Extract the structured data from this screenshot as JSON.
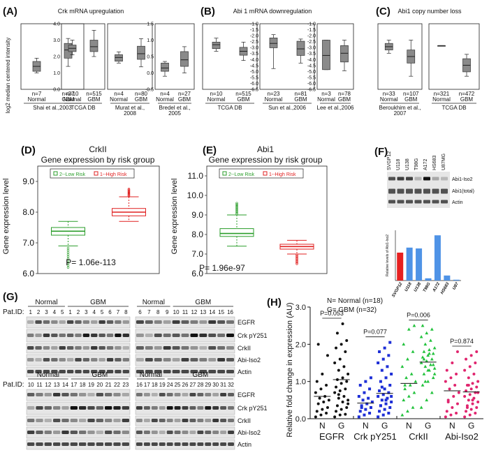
{
  "panels": {
    "A": {
      "label": "(A)",
      "title": "Crk mRNA upregulation",
      "ylabel": "log2 median centered intensity"
    },
    "B": {
      "label": "(B)",
      "title": "Abi 1 mRNA downregulation"
    },
    "C": {
      "label": "(C)",
      "title": "Abi1 copy number loss"
    },
    "D": {
      "label": "(D)",
      "gene": "CrkII",
      "title": "Gene expression by risk group",
      "ylabel": "Gene expression level",
      "pvalue": "P= 1.06e-113"
    },
    "E": {
      "label": "(E)",
      "gene": "Abi1",
      "title": "Gene expression by risk group",
      "ylabel": "Gene expression level",
      "pvalue": "P= 1.96e-97"
    },
    "F": {
      "label": "(F)",
      "ylabel": "Relative levels of Abi1-Iso2"
    },
    "G": {
      "label": "(G)",
      "patid": "Pat.ID:"
    },
    "H": {
      "label": "(H)",
      "legend_normal": "N= Normal (n=18)",
      "legend_gbm": "G= GBM (n=32)",
      "ylabel": "Relative fold change in expression (AU)"
    }
  },
  "chart_data": [
    {
      "panel": "A",
      "type": "box",
      "title": "Crk mRNA upregulation",
      "ylabel": "log2 median centered intensity",
      "subplots": [
        {
          "source": "Shai et al.,2003",
          "groups": [
            {
              "n": "n=7",
              "name": "Normal",
              "q1": 0.05,
              "med": 0.2,
              "q3": 0.35,
              "lo": 0.0,
              "hi": 0.45
            },
            {
              "n": "n=27",
              "name": "GBM",
              "q1": 0.45,
              "med": 0.7,
              "q3": 0.9,
              "lo": 0.2,
              "hi": 1.05
            }
          ],
          "ylim": [
            -0.5,
            1.5
          ],
          "ticks": []
        },
        {
          "source": "TCGA DB",
          "groups": [
            {
              "n": "n=10",
              "name": "Normal",
              "q1": 2.3,
              "med": 2.5,
              "q3": 2.7,
              "lo": 2.1,
              "hi": 3.0
            },
            {
              "n": "n=515",
              "name": "GBM",
              "q1": 2.3,
              "med": 2.6,
              "q3": 3.0,
              "lo": 2.0,
              "hi": 3.6
            }
          ],
          "ylim": [
            0.0,
            4.0
          ],
          "ticks": [
            "4.0",
            "3.0",
            "2.0",
            "1.0",
            "0.0"
          ]
        },
        {
          "source": "Murat et al., 2008",
          "groups": [
            {
              "n": "n=4",
              "name": "Normal",
              "q1": 1.0,
              "med": 1.2,
              "q3": 1.35,
              "lo": 0.9,
              "hi": 1.5
            },
            {
              "n": "n=80",
              "name": "GBM",
              "q1": 1.1,
              "med": 1.4,
              "q3": 1.8,
              "lo": 0.7,
              "hi": 2.2
            }
          ],
          "ylim": [
            -0.5,
            3.0
          ],
          "ticks": []
        },
        {
          "source": "Bredel et al., 2005",
          "groups": [
            {
              "n": "n=4",
              "name": "Normal",
              "q1": 0.05,
              "med": 0.15,
              "q3": 0.3,
              "lo": -0.1,
              "hi": 0.35
            },
            {
              "n": "n=27",
              "name": "GBM",
              "q1": 0.2,
              "med": 0.4,
              "q3": 0.65,
              "lo": 0.0,
              "hi": 0.8
            }
          ],
          "ylim": [
            -0.5,
            1.5
          ],
          "ticks": [
            "1.5",
            "1.0",
            "0.5",
            "0.0",
            "-0.5"
          ]
        }
      ]
    },
    {
      "panel": "B",
      "type": "box",
      "title": "Abi 1 mRNA downregulation",
      "subplots": [
        {
          "source": "TCGA DB",
          "groups": [
            {
              "n": "n=10",
              "name": "Normal",
              "q1": 3.1,
              "med": 3.4,
              "q3": 3.6,
              "lo": 2.9,
              "hi": 3.9
            },
            {
              "n": "n=515",
              "name": "GBM",
              "q1": 2.6,
              "med": 2.9,
              "q3": 3.2,
              "lo": 2.2,
              "hi": 3.6
            }
          ],
          "ylim": [
            0.0,
            5.0
          ],
          "ticks": []
        },
        {
          "source": "Sun et al.,2006",
          "groups": [
            {
              "n": "n=23",
              "name": "Normal",
              "q1": -2.7,
              "med": -2.3,
              "q3": -1.8,
              "lo": -4.6,
              "hi": -1.5
            },
            {
              "n": "n=81",
              "name": "GBM",
              "q1": -3.4,
              "med": -2.8,
              "q3": -2.1,
              "lo": -4.1,
              "hi": -1.9
            }
          ],
          "ylim": [
            -6.5,
            -0.5
          ],
          "ticks": [
            "-1.0",
            "-1.5",
            "-2.0",
            "-2.5",
            "-3.0",
            "-3.5",
            "-4.0",
            "-4.5",
            "-5.0",
            "-5.5",
            "-6.0",
            "-6.5"
          ]
        },
        {
          "source": "Lee et al.,2006",
          "groups": [
            {
              "n": "n=3",
              "name": "Normal",
              "q1": -4.7,
              "med": -3.4,
              "q3": -2.0,
              "lo": -4.7,
              "hi": -2.0
            },
            {
              "n": "n=78",
              "name": "GBM",
              "q1": -4.0,
              "med": -3.2,
              "q3": -2.5,
              "lo": -4.8,
              "hi": -2.0
            }
          ],
          "ylim": [
            -6.5,
            -0.5
          ],
          "ticks": [
            "-1.0",
            "-1.5",
            "-2.0",
            "-2.5",
            "-3.0",
            "-3.5",
            "-4.0",
            "-4.5",
            "-5.0",
            "-5.5",
            "-6.0",
            "-6.5"
          ]
        }
      ]
    },
    {
      "panel": "C",
      "type": "box",
      "title": "Abi1 copy number loss",
      "subplots": [
        {
          "source": "Beroukhim et al., 2007",
          "groups": [
            {
              "n": "n=33",
              "name": "Normal",
              "q1": 0.1,
              "med": 0.15,
              "q3": 0.2,
              "lo": 0.05,
              "hi": 0.25
            },
            {
              "n": "n=107",
              "name": "GBM",
              "q1": -0.1,
              "med": 0.0,
              "q3": 0.1,
              "lo": -0.3,
              "hi": 0.25
            }
          ],
          "ylim": [
            -0.5,
            0.5
          ],
          "ticks": []
        },
        {
          "source": "TCGA DB",
          "groups": [
            {
              "n": "n=321",
              "name": "Normal",
              "q1": 0.0,
              "med": 0.0,
              "q3": 0.0,
              "lo": 0.0,
              "hi": 0.0
            },
            {
              "n": "n=472",
              "name": "GBM",
              "q1": -0.6,
              "med": -0.45,
              "q3": -0.3,
              "lo": -0.7,
              "hi": -0.2
            }
          ],
          "ylim": [
            -1.0,
            0.5
          ],
          "ticks": []
        }
      ]
    },
    {
      "panel": "D",
      "type": "box",
      "gene": "CrkII",
      "title": "Gene expression by risk group",
      "ylabel": "Gene expression level",
      "legend": [
        "2--Low Risk",
        "1--High Risk"
      ],
      "ylim": [
        6.0,
        9.5
      ],
      "ticks": [
        "9.0",
        "8.0",
        "7.0",
        "6.0"
      ],
      "groups": [
        {
          "name": "2--Low Risk",
          "q1": 7.25,
          "med": 7.38,
          "q3": 7.5,
          "lo": 6.9,
          "hi": 7.7,
          "outlier_lo": 6.2,
          "color": "#2a9d2a"
        },
        {
          "name": "1--High Risk",
          "q1": 7.88,
          "med": 8.0,
          "q3": 8.12,
          "lo": 7.7,
          "hi": 8.5,
          "outlier_hi": 8.75,
          "color": "#e02020"
        }
      ],
      "pvalue": "P= 1.06e-113"
    },
    {
      "panel": "E",
      "type": "box",
      "gene": "Abi1",
      "title": "Gene expression by risk group",
      "ylabel": "Gene expression level",
      "legend": [
        "2--Low Risk",
        "1--High Risk"
      ],
      "ylim": [
        6.0,
        11.5
      ],
      "ticks": [
        "11.0",
        "10.0",
        "9.0",
        "8.0",
        "7.0",
        "6.0"
      ],
      "groups": [
        {
          "name": "2--Low Risk",
          "q1": 7.9,
          "med": 8.05,
          "q3": 8.3,
          "lo": 7.4,
          "hi": 9.0,
          "outlier_hi": 9.6,
          "color": "#2a9d2a"
        },
        {
          "name": "1--High Risk",
          "q1": 7.25,
          "med": 7.38,
          "q3": 7.5,
          "lo": 7.0,
          "hi": 7.7,
          "outlier_lo": 6.5,
          "color": "#e02020"
        }
      ],
      "pvalue": "P= 1.96e-97"
    },
    {
      "panel": "F",
      "type": "bar",
      "ylabel": "Relative levels of Abi1-Iso2",
      "categories": [
        "SVGP12",
        "U118",
        "U138",
        "T98G",
        "A172",
        "HS683",
        "U87"
      ],
      "values": [
        1.0,
        1.18,
        1.15,
        0.08,
        1.62,
        0.18,
        0.03
      ],
      "colors": [
        "#e62020",
        "#4f93e6",
        "#4f93e6",
        "#4f93e6",
        "#4f93e6",
        "#4f93e6",
        "#4f93e6"
      ],
      "blot_lanes": [
        "SVGP12",
        "U118",
        "U138",
        "T98G",
        "A172",
        "HS683",
        "U87MG"
      ],
      "blot_rows": [
        "Abi1-Iso2",
        "Abi1(total)",
        "Actin"
      ]
    },
    {
      "panel": "G",
      "type": "table",
      "patid": "Pat.ID:",
      "blocks": [
        {
          "normal": "Normal",
          "gbm": "GBM",
          "ids": [
            "1",
            "2",
            "3",
            "4",
            "5",
            "1",
            "2",
            "3",
            "4",
            "5",
            "6",
            "7",
            "8"
          ],
          "rows": []
        },
        {
          "normal": "Normal",
          "gbm": "GBM",
          "ids": [
            "6",
            "7",
            "8",
            "9",
            "10",
            "11",
            "12",
            "13",
            "14",
            "15",
            "16"
          ],
          "rows": [
            "EGFR",
            "Crk pY251",
            "CrkII",
            "Abi-Iso2",
            "Actin"
          ]
        },
        {
          "normal": "Normal",
          "gbm": "GBM",
          "ids": [
            "10",
            "11",
            "12",
            "13",
            "14",
            "17",
            "18",
            "19",
            "20",
            "21",
            "22",
            "23"
          ],
          "rows": []
        },
        {
          "normal": "Normal",
          "gbm": "GBM",
          "ids": [
            "16",
            "17",
            "18",
            "19",
            "24",
            "25",
            "26",
            "27",
            "28",
            "29",
            "30",
            "31",
            "32"
          ],
          "rows": [
            "EGFR",
            "Crk pY251",
            "CrkII",
            "Abi-Iso2",
            "Actin"
          ]
        }
      ]
    },
    {
      "panel": "H",
      "type": "scatter",
      "ylabel": "Relative fold change in expression (AU)",
      "ylim": [
        0.0,
        3.0
      ],
      "ticks": [
        "0.0",
        "1.0",
        "2.0",
        "3.0"
      ],
      "groups": [
        {
          "name": "EGFR",
          "color": "#111111",
          "marker": "circle",
          "pvalue": "P=0.053",
          "N": [
            0.05,
            0.1,
            0.15,
            0.2,
            0.25,
            0.3,
            0.4,
            0.45,
            0.5,
            0.55,
            0.6,
            0.7,
            0.8,
            0.9,
            1.0,
            1.2,
            1.7,
            2.0
          ],
          "G": [
            0.05,
            0.1,
            0.12,
            0.2,
            0.25,
            0.3,
            0.35,
            0.45,
            0.5,
            0.55,
            0.6,
            0.7,
            0.75,
            0.8,
            0.85,
            0.95,
            1.0,
            1.05,
            1.1,
            1.2,
            1.3,
            1.4,
            1.5,
            1.6,
            1.8,
            1.9,
            2.0,
            2.1,
            2.3,
            2.55,
            0.4,
            0.65
          ],
          "N_mean": 0.6,
          "G_mean": 1.05
        },
        {
          "name": "Crk pY251",
          "color": "#1e2fd6",
          "marker": "square",
          "pvalue": "P=0.077",
          "N": [
            0.05,
            0.1,
            0.15,
            0.2,
            0.25,
            0.3,
            0.35,
            0.4,
            0.45,
            0.5,
            0.55,
            0.6,
            0.7,
            0.8,
            0.9,
            1.0,
            1.1,
            0.3
          ],
          "G": [
            0.05,
            0.1,
            0.15,
            0.2,
            0.25,
            0.3,
            0.35,
            0.4,
            0.45,
            0.5,
            0.55,
            0.6,
            0.65,
            0.7,
            0.75,
            0.8,
            0.9,
            1.0,
            1.1,
            1.2,
            1.3,
            1.4,
            1.5,
            1.6,
            1.7,
            1.8,
            1.9,
            2.05,
            0.35,
            0.5,
            0.6,
            0.85
          ],
          "N_mean": 0.42,
          "G_mean": 0.68
        },
        {
          "name": "CrkII",
          "color": "#23c23d",
          "marker": "triangle",
          "pvalue": "P=0.006",
          "N": [
            0.1,
            0.2,
            0.3,
            0.5,
            0.6,
            0.7,
            0.8,
            0.9,
            1.0,
            1.1,
            1.2,
            1.4,
            1.6,
            1.8,
            2.0,
            2.4,
            2.5,
            0.9
          ],
          "G": [
            0.3,
            0.5,
            0.7,
            0.9,
            1.0,
            1.1,
            1.2,
            1.3,
            1.35,
            1.4,
            1.45,
            1.5,
            1.55,
            1.6,
            1.65,
            1.7,
            1.75,
            1.8,
            1.85,
            1.9,
            2.0,
            2.1,
            2.2,
            2.3,
            2.4,
            2.5,
            1.3,
            1.45,
            1.6,
            1.75,
            1.2,
            1.0
          ],
          "N_mean": 0.95,
          "G_mean": 1.52
        },
        {
          "name": "Abi-Iso2",
          "color": "#e0256e",
          "marker": "circle",
          "pvalue": "P=0.874",
          "N": [
            0.05,
            0.1,
            0.15,
            0.2,
            0.3,
            0.4,
            0.5,
            0.6,
            0.7,
            0.8,
            0.9,
            1.0,
            1.1,
            1.2,
            1.3,
            1.5,
            1.8,
            0.45
          ],
          "G": [
            0.05,
            0.1,
            0.15,
            0.2,
            0.25,
            0.3,
            0.35,
            0.4,
            0.45,
            0.5,
            0.55,
            0.6,
            0.65,
            0.7,
            0.75,
            0.8,
            0.85,
            0.9,
            0.95,
            1.0,
            1.1,
            1.2,
            1.3,
            1.4,
            1.5,
            1.6,
            1.7,
            1.8,
            0.3,
            0.5,
            0.7,
            0.9
          ],
          "N_mean": 0.75,
          "G_mean": 0.72
        }
      ],
      "xlabels": [
        "N",
        "G"
      ]
    }
  ]
}
